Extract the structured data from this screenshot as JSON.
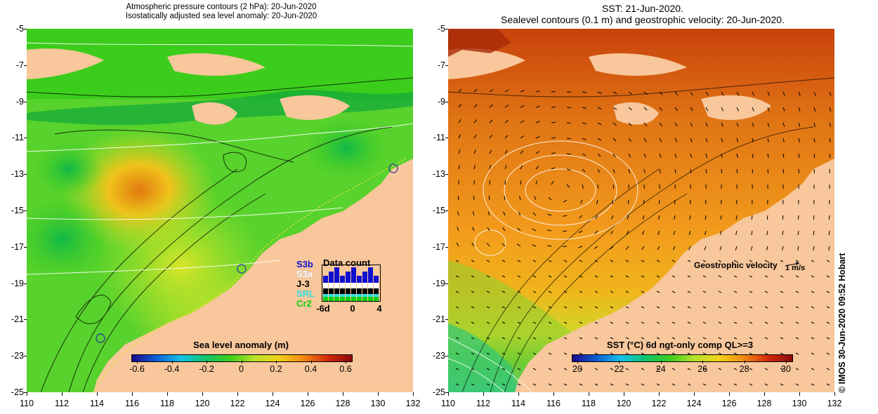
{
  "left_panel": {
    "title_line1": "Atmospheric pressure contours (2 hPa): 20-Jun-2020",
    "title_line2": "Isostatically adjusted sea level anomaly: 20-Jun-2020",
    "colorbar": {
      "title": "Sea level anomaly (m)",
      "labels": [
        "-0.6",
        "-0.4",
        "-0.2",
        "0",
        "0.2",
        "0.4",
        "0.6"
      ],
      "colors": [
        "#1a0a8c",
        "#0d5fd6",
        "#14c0e8",
        "#10c46a",
        "#3ccd1c",
        "#b7e22a",
        "#f2d21a",
        "#f28a12",
        "#d42a0a",
        "#8c0a0a"
      ]
    },
    "data_count": {
      "title": "Data count",
      "satellites": [
        {
          "name": "S3b",
          "color": "#1010d0"
        },
        {
          "name": "S3a",
          "color": "#ffffff"
        },
        {
          "name": "J-3",
          "color": "#000000"
        },
        {
          "name": "SRL",
          "color": "#30e0e0"
        },
        {
          "name": "Cr2",
          "color": "#10d010"
        }
      ],
      "axis_labels": [
        "-6d",
        "0",
        "4"
      ]
    }
  },
  "right_panel": {
    "title_line1": "SST: 21-Jun-2020.",
    "title_line2": "Sealevel contours (0.1 m) and geostrophic velocity: 20-Jun-2020.",
    "colorbar": {
      "title": "SST (°C) 6d ngt-only comp QL>=3",
      "labels": [
        "20",
        "22",
        "24",
        "26",
        "28",
        "30"
      ],
      "colors": [
        "#1a0a8c",
        "#0d5fd6",
        "#14c0e8",
        "#10c46a",
        "#3ccd1c",
        "#b7e22a",
        "#f2d21a",
        "#f28a12",
        "#d42a0a",
        "#8c0a0a"
      ]
    },
    "geostrophic_label": "Geostrophic velocity",
    "geostrophic_unit": "1 m/s"
  },
  "axes": {
    "y_labels": [
      "-5",
      "-7",
      "-9",
      "-11",
      "-13",
      "-15",
      "-17",
      "-19",
      "-21",
      "-23",
      "-25"
    ],
    "x_labels": [
      "110",
      "112",
      "114",
      "116",
      "118",
      "120",
      "122",
      "124",
      "126",
      "128",
      "130",
      "132"
    ]
  },
  "credit": "© IMOS 30-Jun-2020 09:52 Hobart",
  "colors": {
    "land": "#f8c79b",
    "sla_base": "#4fd42a",
    "sst_base": "#f09a1e"
  }
}
